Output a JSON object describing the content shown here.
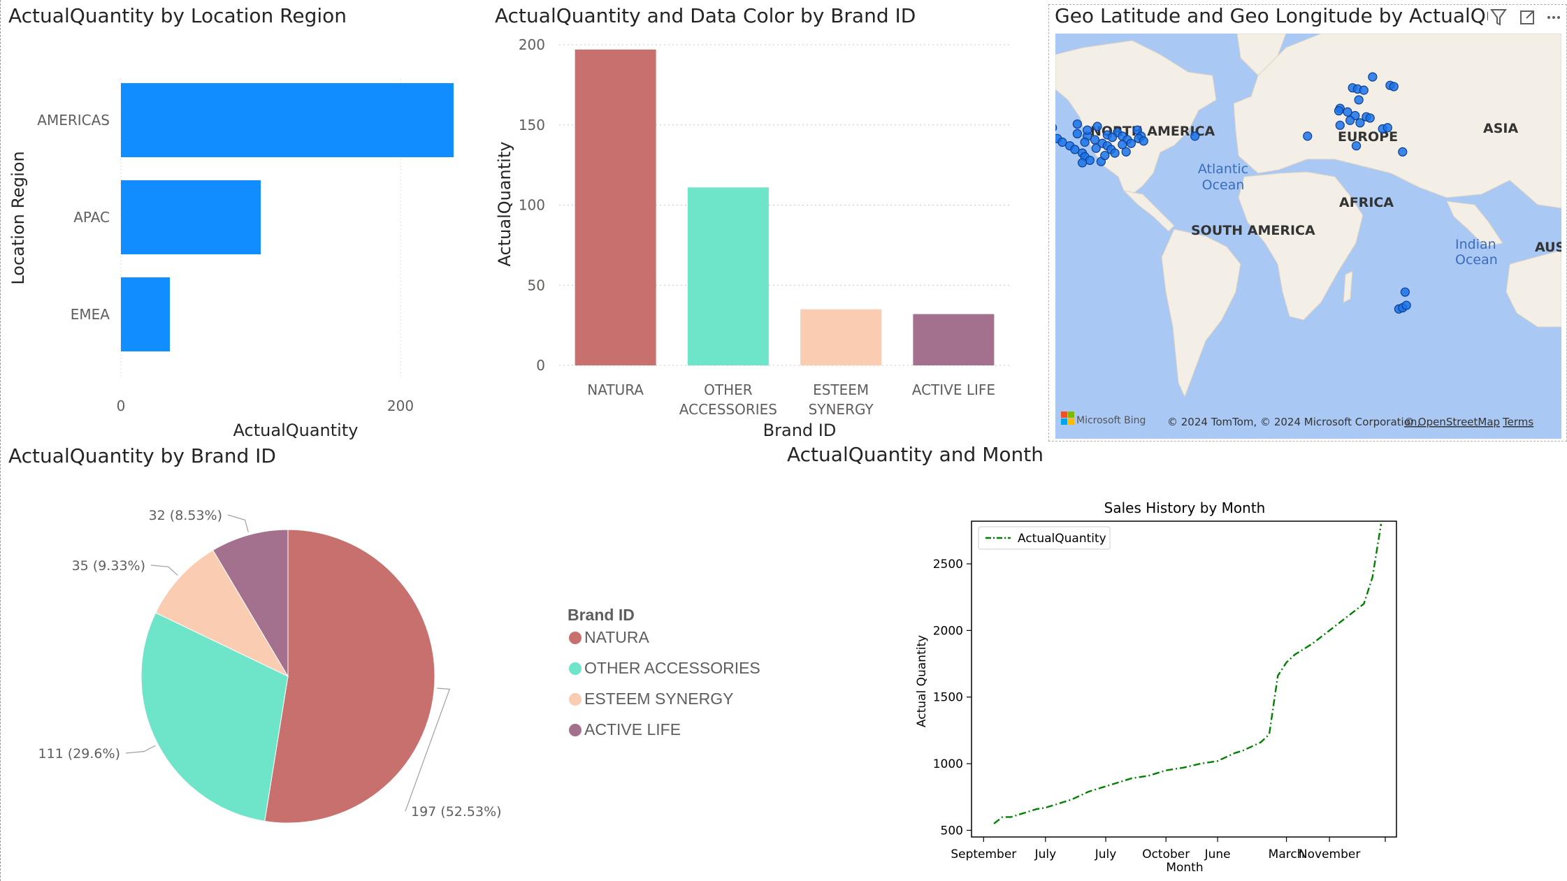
{
  "visuals": {
    "region_bar": {
      "title": "ActualQuantity by Location Region",
      "xlabel": "ActualQuantity",
      "ylabel": "Location Region",
      "x_ticks": [
        "0",
        "200"
      ]
    },
    "brand_bar": {
      "title": "ActualQuantity and Data Color by Brand ID",
      "xlabel": "Brand ID",
      "ylabel": "ActualQuantity",
      "y_ticks": [
        "0",
        "50",
        "100",
        "150",
        "200"
      ]
    },
    "map": {
      "title": "Geo Latitude and Geo Longitude by ActualQuant",
      "labels": {
        "north_america": "NORTH AMERICA",
        "europe": "EUROPE",
        "asia": "ASIA",
        "africa": "AFRICA",
        "south_america": "SOUTH AMERICA",
        "atlantic1": "Atlantic",
        "atlantic2": "Ocean",
        "indian1": "Indian",
        "indian2": "Ocean",
        "aus": "AUS"
      },
      "bing": "Microsoft Bing",
      "copyright": "© 2024 TomTom, © 2024 Microsoft Corporation,",
      "osm": "© OpenStreetMap",
      "terms": "Terms",
      "icons": [
        "filter-icon",
        "focus-mode-icon",
        "more-options-icon"
      ]
    },
    "brand_pie": {
      "title": "ActualQuantity by Brand ID",
      "legend_title": "Brand ID"
    },
    "month_line": {
      "title": "ActualQuantity and Month",
      "plot_title": "Sales History by Month",
      "xlabel": "Month",
      "ylabel": "Actual Quantity",
      "legend_label": "ActualQuantity",
      "y_ticks": [
        "500",
        "1000",
        "1500",
        "2000",
        "2500"
      ],
      "x_ticks": [
        "September",
        "July",
        "July",
        "October",
        "June",
        "March",
        "November"
      ]
    }
  },
  "colors": {
    "bar_blue": "#118dff",
    "natura": "#c8706d",
    "other_accessories": "#6ee5c8",
    "esteem_synergy": "#facdb2",
    "active_life": "#a3718d",
    "line_green": "#008000",
    "map_water": "#a9c8f4",
    "map_land": "#f3efe6",
    "map_dot": "#1a73e8"
  },
  "chart_data": [
    {
      "type": "bar",
      "orientation": "horizontal",
      "title": "ActualQuantity by Location Region",
      "categories": [
        "AMERICAS",
        "APAC",
        "EMEA"
      ],
      "values": [
        238,
        100,
        35
      ],
      "xlabel": "ActualQuantity",
      "ylabel": "Location Region",
      "xlim": [
        0,
        250
      ],
      "grid": true
    },
    {
      "type": "bar",
      "title": "ActualQuantity and Data Color by Brand ID",
      "categories": [
        "NATURA",
        "OTHER ACCESSORIES",
        "ESTEEM SYNERGY",
        "ACTIVE LIFE"
      ],
      "category_lines": [
        [
          "NATURA"
        ],
        [
          "OTHER",
          "ACCESSORIES"
        ],
        [
          "ESTEEM",
          "SYNERGY"
        ],
        [
          "ACTIVE LIFE"
        ]
      ],
      "values": [
        197,
        111,
        35,
        32
      ],
      "colors": [
        "#c8706d",
        "#6ee5c8",
        "#facdb2",
        "#a3718d"
      ],
      "xlabel": "Brand ID",
      "ylabel": "ActualQuantity",
      "ylim": [
        0,
        200
      ],
      "grid": true
    },
    {
      "type": "scatter",
      "title": "Geo Latitude and Geo Longitude by ActualQuantity",
      "series": [
        {
          "points": [
            {
              "lat": 50.5,
              "lon": -126.0
            },
            {
              "lat": 42.5,
              "lon": -119.0
            },
            {
              "lat": 41.5,
              "lon": -117.0
            },
            {
              "lat": 40.5,
              "lon": -116.0
            },
            {
              "lat": 39.5,
              "lon": -118.0
            },
            {
              "lat": 38.5,
              "lon": -119.5
            },
            {
              "lat": 37.5,
              "lon": -120.5
            },
            {
              "lat": 36.5,
              "lon": -121.0
            },
            {
              "lat": 35.0,
              "lon": -119.0
            },
            {
              "lat": 34.0,
              "lon": -117.5
            },
            {
              "lat": 33.0,
              "lon": -116.0
            },
            {
              "lat": 32.0,
              "lon": -114.0
            },
            {
              "lat": 41.0,
              "lon": -112.0
            },
            {
              "lat": 39.5,
              "lon": -108.0
            },
            {
              "lat": 38.0,
              "lon": -106.0
            },
            {
              "lat": 36.5,
              "lon": -103.0
            },
            {
              "lat": 35.0,
              "lon": -101.0
            },
            {
              "lat": 33.5,
              "lon": -98.0
            },
            {
              "lat": 32.0,
              "lon": -97.0
            },
            {
              "lat": 30.5,
              "lon": -95.0
            },
            {
              "lat": 41.5,
              "lon": -100.0
            },
            {
              "lat": 40.5,
              "lon": -96.0
            },
            {
              "lat": 39.0,
              "lon": -93.0
            },
            {
              "lat": 37.5,
              "lon": -90.0
            },
            {
              "lat": 36.5,
              "lon": -88.0
            },
            {
              "lat": 35.0,
              "lon": -86.5
            },
            {
              "lat": 33.5,
              "lon": -85.0
            },
            {
              "lat": 41.0,
              "lon": -88.0
            },
            {
              "lat": 42.0,
              "lon": -84.0
            },
            {
              "lat": 40.5,
              "lon": -82.0
            },
            {
              "lat": 39.0,
              "lon": -80.0
            },
            {
              "lat": 37.5,
              "lon": -78.5
            },
            {
              "lat": 43.0,
              "lon": -76.0
            },
            {
              "lat": 40.5,
              "lon": -74.5
            },
            {
              "lat": 30.0,
              "lon": -90.5
            },
            {
              "lat": 32.5,
              "lon": -89.0
            },
            {
              "lat": 44.5,
              "lon": -92.0
            },
            {
              "lat": 45.5,
              "lon": -100.0
            },
            {
              "lat": 36.0,
              "lon": -113.0
            },
            {
              "lat": 38.0,
              "lon": -97.0
            },
            {
              "lat": 34.0,
              "lon": -80.5
            },
            {
              "lat": 29.5,
              "lon": -98.0
            },
            {
              "lat": 44.0,
              "lon": -110.0
            },
            {
              "lat": 37.0,
              "lon": -82.0
            },
            {
              "lat": 35.5,
              "lon": -92.5
            },
            {
              "lat": 39.5,
              "lon": -75.5
            },
            {
              "lat": 35.5,
              "lon": -115.5
            },
            {
              "lat": 43.0,
              "lon": -96.0
            },
            {
              "lat": 38.5,
              "lon": -73.5
            },
            {
              "lat": 40.0,
              "lon": -86.0
            },
            {
              "lat": 40.5,
              "lon": -53.0
            },
            {
              "lat": 65.0,
              "lon": 18.0
            },
            {
              "lat": 60.5,
              "lon": 10.0
            },
            {
              "lat": 60.0,
              "lon": 12.0
            },
            {
              "lat": 59.5,
              "lon": 14.5
            },
            {
              "lat": 55.5,
              "lon": 12.5
            },
            {
              "lat": 52.0,
              "lon": 5.0
            },
            {
              "lat": 51.0,
              "lon": 4.5
            },
            {
              "lat": 50.5,
              "lon": 8.0
            },
            {
              "lat": 49.0,
              "lon": 11.0
            },
            {
              "lat": 48.5,
              "lon": 15.5
            },
            {
              "lat": 48.0,
              "lon": 17.0
            },
            {
              "lat": 47.0,
              "lon": 9.0
            },
            {
              "lat": 46.0,
              "lon": 13.0
            },
            {
              "lat": 45.0,
              "lon": 5.0
            },
            {
              "lat": 43.5,
              "lon": 22.0
            },
            {
              "lat": 44.0,
              "lon": 24.0
            },
            {
              "lat": 61.5,
              "lon": 25.0
            },
            {
              "lat": 61.0,
              "lon": 26.5
            },
            {
              "lat": 40.5,
              "lon": -8.0
            },
            {
              "lat": 36.5,
              "lon": 11.5
            },
            {
              "lat": 34.0,
              "lon": 30.0
            },
            {
              "lat": 13.5,
              "lon": 103.5
            },
            {
              "lat": -24.0,
              "lon": 31.0
            },
            {
              "lat": -31.0,
              "lon": 28.5
            },
            {
              "lat": -30.5,
              "lon": 30.0
            },
            {
              "lat": -29.5,
              "lon": 31.5
            }
          ]
        }
      ]
    },
    {
      "type": "pie",
      "title": "ActualQuantity by Brand ID",
      "legend_title": "Brand ID",
      "categories": [
        "NATURA",
        "OTHER ACCESSORIES",
        "ESTEEM SYNERGY",
        "ACTIVE LIFE"
      ],
      "values": [
        197,
        111,
        35,
        32
      ],
      "labels": [
        "197 (52.53%)",
        "111 (29.6%)",
        "35 (9.33%)",
        "32 (8.53%)"
      ],
      "colors": [
        "#c8706d",
        "#6ee5c8",
        "#facdb2",
        "#a3718d"
      ]
    },
    {
      "type": "line",
      "title": "Sales History by Month",
      "xlabel": "Month",
      "ylabel": "Actual Quantity",
      "series": [
        {
          "name": "ActualQuantity",
          "style": "dash-dot",
          "color": "#008000",
          "values": [
            550,
            600,
            600,
            620,
            640,
            660,
            670,
            690,
            710,
            730,
            760,
            790,
            810,
            830,
            850,
            870,
            890,
            900,
            910,
            930,
            950,
            960,
            970,
            985,
            1000,
            1010,
            1020,
            1050,
            1080,
            1100,
            1130,
            1160,
            1220,
            1660,
            1760,
            1820,
            1860,
            1900,
            1950,
            2000,
            2050,
            2100,
            2150,
            2200,
            2400,
            2800
          ]
        }
      ],
      "ylim": [
        450,
        2820
      ],
      "legend": "top-left",
      "grid": false
    }
  ]
}
